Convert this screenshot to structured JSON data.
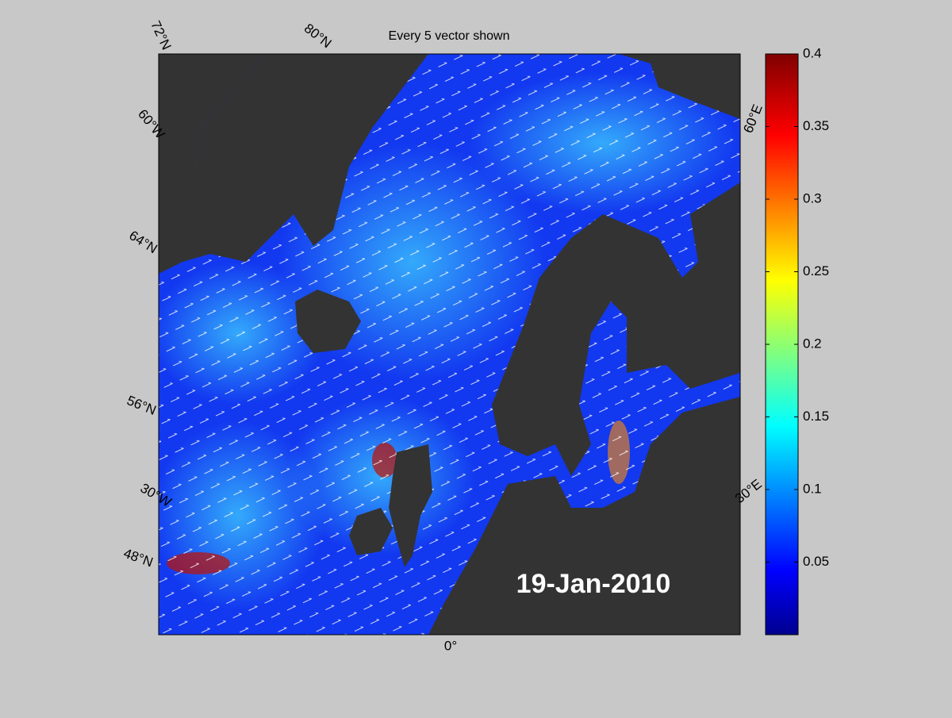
{
  "title": "Every 5 vector shown",
  "date_label": "19-Jan-2010",
  "graticule_labels": [
    "72°N",
    "80°N",
    "60°W",
    "64°N",
    "56°N",
    "30°W",
    "48°N",
    "0°",
    "30°E",
    "60°E"
  ],
  "colorbar": {
    "lim": [
      0,
      0.4
    ],
    "ticks": [
      0.05,
      0.1,
      0.15,
      0.2,
      0.25,
      0.3,
      0.35,
      0.4
    ]
  }
}
